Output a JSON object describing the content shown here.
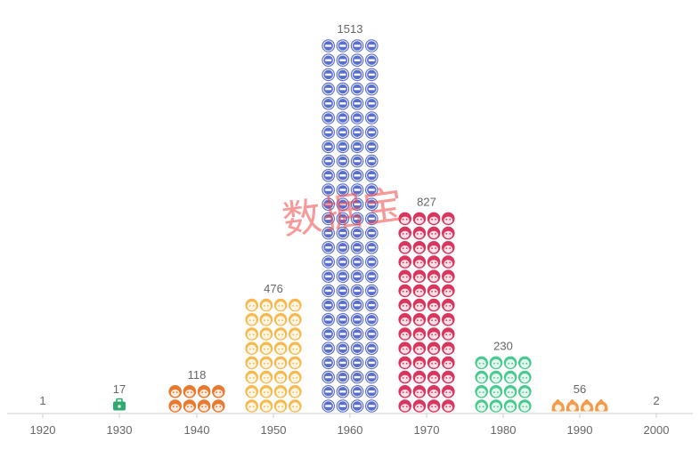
{
  "chart_data": {
    "type": "bar",
    "categories": [
      "1920",
      "1930",
      "1940",
      "1950",
      "1960",
      "1970",
      "1980",
      "1990",
      "2000"
    ],
    "values": [
      1,
      17,
      118,
      476,
      1513,
      827,
      230,
      56,
      2
    ],
    "data_labels": [
      "1",
      "17",
      "118",
      "476",
      "1513",
      "827",
      "230",
      "56",
      "2"
    ],
    "icon_names": [
      "person-icon",
      "briefcase-icon",
      "tiger-face-icon",
      "cat-face-icon",
      "logo-badge-icon",
      "girl-face-icon",
      "boy-face-icon",
      "flame-face-icon",
      "person-icon"
    ],
    "colors": [
      "#aaaaaa",
      "#2eaa6c",
      "#e8792e",
      "#f6b94e",
      "#5a6ed0",
      "#d8365e",
      "#49c98e",
      "#f59a4b",
      "#aaaaaa"
    ],
    "ylim": [
      0,
      1600
    ],
    "grid": false,
    "legend": "none"
  },
  "watermark": "数据宝"
}
